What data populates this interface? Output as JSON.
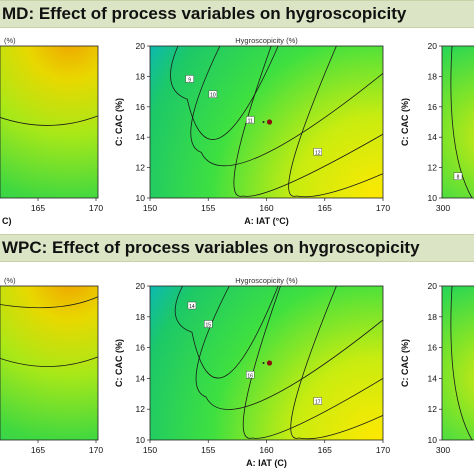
{
  "banners": {
    "md": "MD: Effect of process variables on hygroscopicity",
    "wpc": "WPC: Effect of process variables on hygroscopicity"
  },
  "chart_data": [
    {
      "type": "contour",
      "title": "Hygroscopicity (%)",
      "xlabel": "A: IAT (°C)",
      "ylabel": "C: CAC (%)",
      "x_ticks": [
        "150",
        "155",
        "160",
        "165",
        "170"
      ],
      "y_ticks": [
        "10",
        "12",
        "14",
        "16",
        "18",
        "20"
      ],
      "xlim": [
        150,
        170
      ],
      "ylim": [
        10,
        20
      ],
      "design_point": [
        160,
        15
      ],
      "contour_labels": [
        "9",
        "10",
        "11",
        "12"
      ]
    },
    {
      "type": "contour",
      "title": "Hygroscopicity (%)",
      "xlabel": "A: IAT (C)",
      "ylabel": "C: CAC (%)",
      "x_ticks": [
        "150",
        "155",
        "160",
        "165",
        "170"
      ],
      "y_ticks": [
        "10",
        "12",
        "14",
        "16",
        "18",
        "20"
      ],
      "xlim": [
        150,
        170
      ],
      "ylim": [
        10,
        20
      ],
      "design_point": [
        160,
        15
      ],
      "contour_labels": [
        "14",
        "15",
        "16",
        "17"
      ]
    }
  ],
  "partial_panels": {
    "md_left_x_ticks": [
      "165",
      "170"
    ],
    "md_left_xlabel_fragment": "C)",
    "md_left_title_fragment": "(%)",
    "md_right_ylabel": "C: CAC (%)",
    "md_right_y_ticks": [
      "10",
      "12",
      "14",
      "16",
      "18",
      "20"
    ],
    "md_right_x_tick": "300",
    "md_right_contour_label": "8",
    "wpc_left_x_ticks": [
      "165",
      "170"
    ],
    "wpc_left_title_fragment": "(%)",
    "wpc_right_ylabel": "C: CAC (%)",
    "wpc_right_y_ticks": [
      "10",
      "12",
      "14",
      "16",
      "18",
      "20"
    ],
    "wpc_right_x_tick": "300"
  },
  "colors": {
    "banner_bg": "#dbe4c4",
    "gradient_low": "#00b0e8",
    "gradient_mid": "#22d060",
    "gradient_high": "#f0e000"
  }
}
